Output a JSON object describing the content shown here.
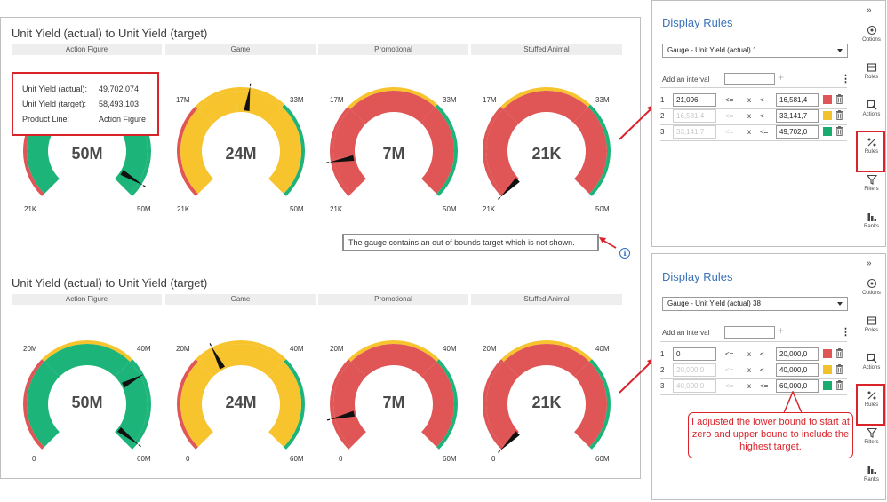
{
  "top_report": {
    "title": "Unit Yield (actual) to Unit Yield (target)",
    "categories": [
      "Action Figure",
      "Game",
      "Promotional",
      "Stuffed Animal"
    ],
    "gauges": [
      {
        "value_label": "50M",
        "min_label": "21K",
        "max_label": "50M",
        "mid_label": "",
        "right_label": ""
      },
      {
        "value_label": "24M",
        "min_label": "21K",
        "max_label": "50M",
        "mid_label": "17M",
        "right_label": "33M"
      },
      {
        "value_label": "7M",
        "min_label": "21K",
        "max_label": "50M",
        "mid_label": "17M",
        "right_label": "33M"
      },
      {
        "value_label": "21K",
        "min_label": "21K",
        "max_label": "50M",
        "mid_label": "17M",
        "right_label": "33M"
      }
    ],
    "tooltip": {
      "actual_label": "Unit Yield (actual):",
      "actual_value": "49,702,074",
      "target_label": "Unit Yield (target):",
      "target_value": "58,493,103",
      "line_label": "Product Line:",
      "line_value": "Action Figure"
    },
    "out_of_bounds_note": "The gauge contains an out of bounds target which is not shown."
  },
  "bottom_report": {
    "title": "Unit Yield (actual) to Unit Yield (target)",
    "categories": [
      "Action Figure",
      "Game",
      "Promotional",
      "Stuffed Animal"
    ],
    "gauges": [
      {
        "value_label": "50M",
        "min_label": "0",
        "max_label": "60M",
        "mid_label": "20M",
        "right_label": "40M"
      },
      {
        "value_label": "24M",
        "min_label": "0",
        "max_label": "60M",
        "mid_label": "20M",
        "right_label": "40M"
      },
      {
        "value_label": "7M",
        "min_label": "0",
        "max_label": "60M",
        "mid_label": "20M",
        "right_label": "40M"
      },
      {
        "value_label": "21K",
        "min_label": "0",
        "max_label": "60M",
        "mid_label": "20M",
        "right_label": "40M"
      }
    ]
  },
  "top_pane": {
    "title": "Display Rules",
    "dropdown": "Gauge - Unit Yield (actual) 1",
    "add_interval": "Add an interval",
    "rules": [
      {
        "num": "1",
        "low": "21,096",
        "op1": "<=",
        "x": "x",
        "op2": "<",
        "high": "16,581,4",
        "color": "#e05555"
      },
      {
        "num": "2",
        "low": "16,581,4",
        "op1": "<=",
        "x": "x",
        "op2": "<",
        "high": "33,141,7",
        "color": "#f2c12e"
      },
      {
        "num": "3",
        "low": "33,141,7",
        "op1": "<=",
        "x": "x",
        "op2": "<=",
        "high": "49,702,0",
        "color": "#1aab6e"
      }
    ]
  },
  "bottom_pane": {
    "title": "Display Rules",
    "dropdown": "Gauge - Unit Yield (actual) 38",
    "add_interval": "Add an interval",
    "rules": [
      {
        "num": "1",
        "low": "0",
        "op1": "<=",
        "x": "x",
        "op2": "<",
        "high": "20,000,0",
        "color": "#e05555"
      },
      {
        "num": "2",
        "low": "20,000,0",
        "op1": "<=",
        "x": "x",
        "op2": "<",
        "high": "40,000,0",
        "color": "#f2c12e"
      },
      {
        "num": "3",
        "low": "40,000,0",
        "op1": "<=",
        "x": "x",
        "op2": "<=",
        "high": "60,000,0",
        "color": "#1aab6e"
      }
    ]
  },
  "side_nav": {
    "options": "Options",
    "roles": "Roles",
    "actions": "Actions",
    "rules": "Rules",
    "filters": "Filters",
    "ranks": "Ranks"
  },
  "callout": "I adjusted the lower bound to start at zero and upper bound to include the highest target."
}
